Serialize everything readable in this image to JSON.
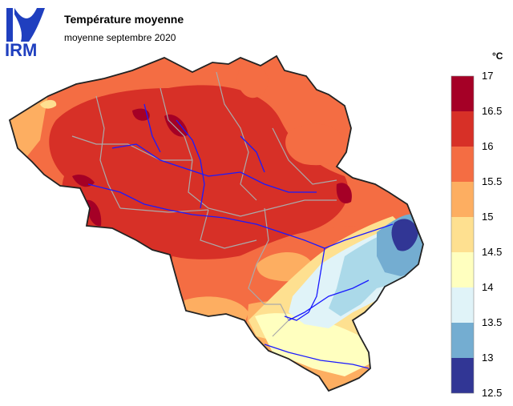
{
  "header": {
    "logo_text": "IRM",
    "title": "Température moyenne",
    "subtitle": "moyenne septembre 2020"
  },
  "legend": {
    "unit": "°C",
    "bins": [
      {
        "label": "17",
        "color": "#a50026"
      },
      {
        "label": "16.5",
        "color": "#d73027"
      },
      {
        "label": "16",
        "color": "#f46d43"
      },
      {
        "label": "15.5",
        "color": "#fdae61"
      },
      {
        "label": "15",
        "color": "#fee090"
      },
      {
        "label": "14.5",
        "color": "#ffffbf"
      },
      {
        "label": "14",
        "color": "#e0f3f8"
      },
      {
        "label": "13.5",
        "color": "#abd9e9"
      },
      {
        "label": "13",
        "color": "#74add1"
      },
      {
        "label": "12.5",
        "color": "#313695"
      }
    ]
  },
  "colors": {
    "rivers": "#1a1aff",
    "province_borders": "#aaaaaa",
    "country_border": "#222222",
    "logo": "#1f3fbf"
  }
}
